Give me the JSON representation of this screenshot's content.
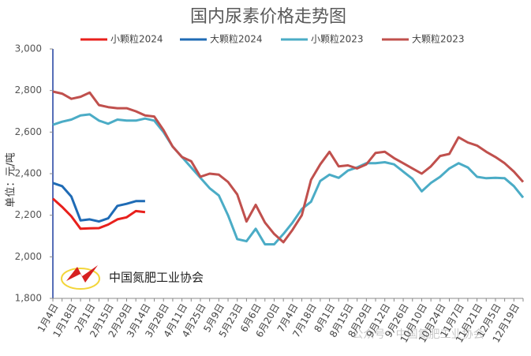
{
  "chart_data": {
    "type": "line",
    "title": "国内尿素价格走势图",
    "y_label": "单位：元/吨",
    "logo_text": "中国氮肥工业协会",
    "watermark": "公众号 · 中国氮肥工业协会",
    "categories": [
      "1月4日",
      null,
      "1月18日",
      null,
      "2月1日",
      null,
      "2月15日",
      null,
      "2月29日",
      null,
      "3月14日",
      null,
      "3月28日",
      null,
      "4月11日",
      null,
      "4月25日",
      null,
      "5月9日",
      null,
      "5月23日",
      null,
      "6月6日",
      null,
      "6月20日",
      null,
      "7月4日",
      null,
      "7月18日",
      null,
      "8月1日",
      null,
      "8月15日",
      null,
      "8月29日",
      null,
      "9月12日",
      null,
      "9月26日",
      null,
      "10月10日",
      null,
      "10月24日",
      null,
      "11月7日",
      null,
      "11月21日",
      null,
      "12月5日",
      null,
      "12月19日",
      null
    ],
    "series": [
      {
        "name": "小颗粒2024",
        "color": "#e8201c",
        "values": [
          2280,
          2240,
          2195,
          2135,
          2137,
          2138,
          2155,
          2180,
          2190,
          2220,
          2215,
          null,
          null,
          null,
          null,
          null,
          null,
          null,
          null,
          null,
          null,
          null,
          null,
          null,
          null,
          null,
          null,
          null,
          null,
          null,
          null,
          null,
          null,
          null,
          null,
          null,
          null,
          null,
          null,
          null,
          null,
          null,
          null,
          null,
          null,
          null,
          null,
          null,
          null,
          null,
          null,
          null
        ]
      },
      {
        "name": "大颗粒2024",
        "color": "#1f6bb5",
        "values": [
          2355,
          2340,
          2290,
          2175,
          2180,
          2170,
          2185,
          2245,
          2255,
          2268,
          2268,
          null,
          null,
          null,
          null,
          null,
          null,
          null,
          null,
          null,
          null,
          null,
          null,
          null,
          null,
          null,
          null,
          null,
          null,
          null,
          null,
          null,
          null,
          null,
          null,
          null,
          null,
          null,
          null,
          null,
          null,
          null,
          null,
          null,
          null,
          null,
          null,
          null,
          null,
          null,
          null,
          null
        ]
      },
      {
        "name": "小颗粒2023",
        "color": "#4bacc6",
        "values": [
          2635,
          2650,
          2660,
          2680,
          2685,
          2655,
          2640,
          2660,
          2655,
          2655,
          2665,
          2655,
          2600,
          2530,
          2480,
          2430,
          2380,
          2330,
          2295,
          2200,
          2085,
          2075,
          2135,
          2060,
          2060,
          2110,
          2165,
          2230,
          2265,
          2365,
          2395,
          2380,
          2415,
          2430,
          2450,
          2450,
          2455,
          2445,
          2410,
          2375,
          2315,
          2355,
          2385,
          2425,
          2450,
          2430,
          2385,
          2378,
          2380,
          2378,
          2340,
          2285
        ]
      },
      {
        "name": "大颗粒2023",
        "color": "#c0504d",
        "values": [
          2795,
          2785,
          2760,
          2770,
          2790,
          2730,
          2720,
          2715,
          2715,
          2700,
          2680,
          2675,
          2610,
          2530,
          2480,
          2460,
          2385,
          2400,
          2395,
          2360,
          2300,
          2170,
          2250,
          2165,
          2110,
          2070,
          2130,
          2200,
          2370,
          2445,
          2505,
          2435,
          2440,
          2425,
          2445,
          2500,
          2505,
          2475,
          2450,
          2425,
          2400,
          2435,
          2485,
          2495,
          2575,
          2550,
          2535,
          2505,
          2480,
          2450,
          2410,
          2360
        ]
      }
    ],
    "ylim": [
      1800,
      3000
    ],
    "yticks": [
      {
        "value": 1800,
        "label": "1,800"
      },
      {
        "value": 2000,
        "label": "2,000"
      },
      {
        "value": 2200,
        "label": "2,200"
      },
      {
        "value": 2400,
        "label": "2,400"
      },
      {
        "value": 2600,
        "label": "2,600"
      },
      {
        "value": 2800,
        "label": "2,800"
      },
      {
        "value": 3000,
        "label": "3,000"
      }
    ],
    "grid": false,
    "legend": "top"
  }
}
